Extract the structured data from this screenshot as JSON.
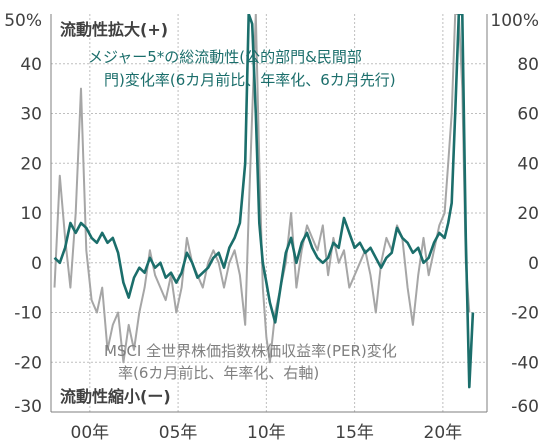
{
  "chart_data": {
    "type": "line",
    "title": "",
    "xlabel": "",
    "ylabel": "",
    "ylabel_right": "",
    "ylim": [
      -30,
      50
    ],
    "ylim_right": [
      -60,
      100
    ],
    "xlim": [
      1997.8,
      2022.5
    ],
    "y_ticks": [
      {
        "value": -30,
        "label": "-30"
      },
      {
        "value": -20,
        "label": "-20"
      },
      {
        "value": -10,
        "label": "-10"
      },
      {
        "value": 0,
        "label": "0"
      },
      {
        "value": 10,
        "label": "10"
      },
      {
        "value": 20,
        "label": "20"
      },
      {
        "value": 30,
        "label": "30"
      },
      {
        "value": 40,
        "label": "40"
      },
      {
        "value": 50,
        "label": "50%"
      }
    ],
    "y_ticks_right": [
      {
        "value": -60,
        "label": "-60"
      },
      {
        "value": -40,
        "label": "-40"
      },
      {
        "value": -20,
        "label": "-20"
      },
      {
        "value": 0,
        "label": "0"
      },
      {
        "value": 20,
        "label": "20"
      },
      {
        "value": 40,
        "label": "40"
      },
      {
        "value": 60,
        "label": "60"
      },
      {
        "value": 80,
        "label": "80"
      },
      {
        "value": 100,
        "label": "100%"
      }
    ],
    "x_ticks": [
      {
        "value": 2000,
        "label": "00年"
      },
      {
        "value": 2005,
        "label": "05年"
      },
      {
        "value": 2010,
        "label": "10年"
      },
      {
        "value": 2015,
        "label": "15年"
      },
      {
        "value": 2020,
        "label": "20年"
      }
    ],
    "vgrid": [
      2000,
      2005,
      2010,
      2015,
      2020
    ],
    "hgrid": [
      -20,
      -10,
      0,
      10,
      20,
      30,
      40
    ],
    "annotations": {
      "top": "流動性拡大(+)",
      "bottom": "流動性縮小(ー)",
      "teal_line1": "メジャー5*の総流動性(公的部門&民間部",
      "teal_line2": "門)変化率(6カ月前比、年率化、6カ月先行)",
      "gray_line1": "MSCI 全世界株価指数株価収益率(PER)変化",
      "gray_line2": "率(6カ月前比、年率化、右軸)"
    },
    "series": [
      {
        "axis": "left",
        "color": "#1b6e6b",
        "x": [
          1998.0,
          1998.3,
          1998.6,
          1998.9,
          1999.2,
          1999.5,
          1999.8,
          2000.1,
          2000.4,
          2000.7,
          2001.0,
          2001.3,
          2001.6,
          2001.9,
          2002.2,
          2002.5,
          2002.8,
          2003.1,
          2003.4,
          2003.7,
          2004.0,
          2004.3,
          2004.6,
          2004.9,
          2005.2,
          2005.5,
          2005.8,
          2006.1,
          2006.4,
          2006.7,
          2007.0,
          2007.3,
          2007.6,
          2007.9,
          2008.2,
          2008.5,
          2008.8,
          2009.0,
          2009.2,
          2009.4,
          2009.6,
          2009.8,
          2010.0,
          2010.2,
          2010.5,
          2010.8,
          2011.1,
          2011.4,
          2011.7,
          2012.0,
          2012.3,
          2012.6,
          2012.9,
          2013.2,
          2013.5,
          2013.8,
          2014.1,
          2014.4,
          2014.7,
          2015.0,
          2015.3,
          2015.6,
          2015.9,
          2016.2,
          2016.5,
          2016.8,
          2017.1,
          2017.4,
          2017.7,
          2018.0,
          2018.3,
          2018.6,
          2018.9,
          2019.2,
          2019.5,
          2019.8,
          2020.1,
          2020.3,
          2020.5,
          2020.7,
          2020.9,
          2021.1,
          2021.3,
          2021.5,
          2021.7
        ],
        "values": [
          1,
          0,
          3,
          8,
          6,
          8,
          7,
          5,
          4,
          6,
          4,
          5,
          2,
          -4,
          -7,
          -3,
          -1,
          -2,
          1,
          -1,
          0,
          -3,
          -2,
          -4,
          -2,
          2,
          0,
          -3,
          -2,
          -1,
          1,
          2,
          -1,
          3,
          5,
          8,
          20,
          50,
          48,
          30,
          8,
          0,
          -4,
          -8,
          -12,
          -5,
          2,
          5,
          0,
          4,
          6,
          3,
          1,
          0,
          1,
          4,
          3,
          9,
          6,
          3,
          4,
          2,
          3,
          1,
          -1,
          1,
          2,
          7,
          5,
          4,
          2,
          3,
          0,
          1,
          4,
          6,
          5,
          8,
          12,
          30,
          50,
          50,
          5,
          -25,
          -10
        ]
      },
      {
        "axis": "right",
        "color": "#a6a6a6",
        "x": [
          1998.0,
          1998.3,
          1998.6,
          1998.9,
          1999.2,
          1999.5,
          1999.8,
          2000.1,
          2000.4,
          2000.7,
          2001.0,
          2001.3,
          2001.6,
          2001.9,
          2002.2,
          2002.5,
          2002.8,
          2003.1,
          2003.4,
          2003.7,
          2004.0,
          2004.3,
          2004.6,
          2004.9,
          2005.2,
          2005.5,
          2005.8,
          2006.1,
          2006.4,
          2006.7,
          2007.0,
          2007.3,
          2007.6,
          2007.9,
          2008.2,
          2008.5,
          2008.8,
          2009.0,
          2009.2,
          2009.4,
          2009.6,
          2009.8,
          2010.0,
          2010.2,
          2010.5,
          2010.8,
          2011.1,
          2011.4,
          2011.7,
          2012.0,
          2012.3,
          2012.6,
          2012.9,
          2013.2,
          2013.5,
          2013.8,
          2014.1,
          2014.4,
          2014.7,
          2015.0,
          2015.3,
          2015.6,
          2015.9,
          2016.2,
          2016.5,
          2016.8,
          2017.1,
          2017.4,
          2017.7,
          2018.0,
          2018.3,
          2018.6,
          2018.9,
          2019.2,
          2019.5,
          2019.8,
          2020.1,
          2020.3,
          2020.5,
          2020.7,
          2020.9,
          2021.1,
          2021.3,
          2021.5
        ],
        "values": [
          -10,
          35,
          10,
          -10,
          20,
          70,
          5,
          -15,
          -20,
          -10,
          -35,
          -25,
          -20,
          -40,
          -25,
          -35,
          -20,
          -10,
          5,
          -5,
          -10,
          -15,
          -5,
          -20,
          -10,
          10,
          0,
          -5,
          -10,
          0,
          5,
          0,
          -10,
          0,
          5,
          -5,
          -25,
          20,
          60,
          100,
          40,
          -10,
          -30,
          -40,
          -20,
          -10,
          0,
          20,
          -10,
          5,
          15,
          10,
          5,
          15,
          -5,
          10,
          0,
          5,
          -10,
          -5,
          0,
          5,
          -5,
          -20,
          0,
          10,
          5,
          15,
          10,
          -10,
          -25,
          -5,
          10,
          -5,
          5,
          15,
          20,
          40,
          60,
          100,
          100,
          70,
          0,
          -20
        ]
      }
    ]
  }
}
